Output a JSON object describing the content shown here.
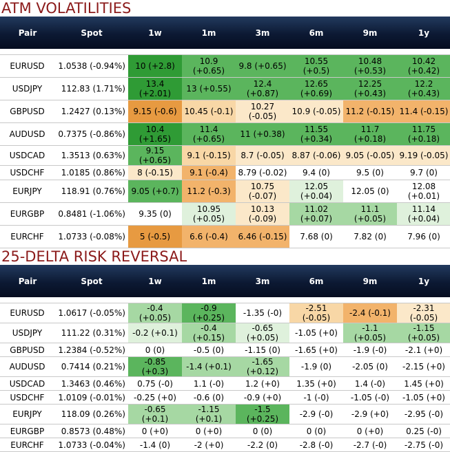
{
  "colors": {
    "title_red": "#8b1a1a",
    "header_navy": "#0c1933",
    "dark_green": "#2f9b35",
    "mid_green": "#5bb55d",
    "light_green": "#a6d8a3",
    "pale_green": "#dff1dc",
    "dark_orange": "#e79a41",
    "mid_orange": "#f2b36b",
    "light_orange": "#f8d7a6",
    "pale_orange": "#fbe8c9",
    "white": "#ffffff"
  },
  "chart_data": [
    {
      "type": "table",
      "title": "ATM VOLATILITIES",
      "columns": [
        "Pair",
        "Spot",
        "1w",
        "1m",
        "3m",
        "6m",
        "9m",
        "1y"
      ],
      "rows": [
        {
          "pair": "EURUSD",
          "spot": "1.0538 (-0.94%)",
          "cells": [
            {
              "text": "10 (+2.8)",
              "color": "#2f9b35"
            },
            {
              "text": "10.9 (+0.65)",
              "color": "#5bb55d"
            },
            {
              "text": "9.8 (+0.65)",
              "color": "#5bb55d"
            },
            {
              "text": "10.55 (+0.5)",
              "color": "#5bb55d"
            },
            {
              "text": "10.48 (+0.53)",
              "color": "#5bb55d"
            },
            {
              "text": "10.42 (+0.42)",
              "color": "#5bb55d"
            }
          ]
        },
        {
          "pair": "USDJPY",
          "spot": "112.83 (1.71%)",
          "cells": [
            {
              "text": "13.4 (+2.01)",
              "color": "#2f9b35"
            },
            {
              "text": "13 (+0.55)",
              "color": "#5bb55d"
            },
            {
              "text": "12.4 (+0.87)",
              "color": "#5bb55d"
            },
            {
              "text": "12.65 (+0.69)",
              "color": "#5bb55d"
            },
            {
              "text": "12.25 (+0.43)",
              "color": "#5bb55d"
            },
            {
              "text": "12.2 (+0.43)",
              "color": "#5bb55d"
            }
          ]
        },
        {
          "pair": "GBPUSD",
          "spot": "1.2427 (0.13%)",
          "cells": [
            {
              "text": "9.15 (-0.6)",
              "color": "#e79a41"
            },
            {
              "text": "10.45 (-0.1)",
              "color": "#f8d7a6"
            },
            {
              "text": "10.27 (-0.05)",
              "color": "#fbe8c9"
            },
            {
              "text": "10.9 (-0.05)",
              "color": "#fbe8c9"
            },
            {
              "text": "11.2 (-0.15)",
              "color": "#f2b36b"
            },
            {
              "text": "11.4 (-0.15)",
              "color": "#f2b36b"
            }
          ]
        },
        {
          "pair": "AUDUSD",
          "spot": "0.7375 (-0.86%)",
          "cells": [
            {
              "text": "10.4 (+1.65)",
              "color": "#2f9b35"
            },
            {
              "text": "11.4 (+0.65)",
              "color": "#5bb55d"
            },
            {
              "text": "11 (+0.38)",
              "color": "#5bb55d"
            },
            {
              "text": "11.55 (+0.34)",
              "color": "#5bb55d"
            },
            {
              "text": "11.7 (+0.18)",
              "color": "#5bb55d"
            },
            {
              "text": "11.75 (+0.18)",
              "color": "#5bb55d"
            }
          ]
        },
        {
          "pair": "USDCAD",
          "spot": "1.3513 (0.63%)",
          "cells": [
            {
              "text": "9.15 (+0.65)",
              "color": "#5bb55d"
            },
            {
              "text": "9.1 (-0.15)",
              "color": "#f8d7a6"
            },
            {
              "text": "8.7 (-0.05)",
              "color": "#fbe8c9"
            },
            {
              "text": "8.87 (-0.06)",
              "color": "#fbe8c9"
            },
            {
              "text": "9.05 (-0.05)",
              "color": "#fbe8c9"
            },
            {
              "text": "9.19 (-0.05)",
              "color": "#fbe8c9"
            }
          ]
        },
        {
          "pair": "USDCHF",
          "spot": "1.0185 (0.86%)",
          "cells": [
            {
              "text": "8 (-0.15)",
              "color": "#fbe8c9"
            },
            {
              "text": "9.1 (-0.4)",
              "color": "#f2b36b"
            },
            {
              "text": "8.79 (-0.02)",
              "color": "#ffffff"
            },
            {
              "text": "9.4 (0)",
              "color": "#ffffff"
            },
            {
              "text": "9.5 (0)",
              "color": "#ffffff"
            },
            {
              "text": "9.7 (0)",
              "color": "#ffffff"
            }
          ]
        },
        {
          "pair": "EURJPY",
          "spot": "118.91 (0.76%)",
          "cells": [
            {
              "text": "9.05 (+0.7)",
              "color": "#5bb55d"
            },
            {
              "text": "11.2 (-0.3)",
              "color": "#f2b36b"
            },
            {
              "text": "10.75 (-0.07)",
              "color": "#fbe8c9"
            },
            {
              "text": "12.05 (+0.04)",
              "color": "#dff1dc"
            },
            {
              "text": "12.05 (0)",
              "color": "#ffffff"
            },
            {
              "text": "12.08 (+0.01)",
              "color": "#ffffff"
            }
          ]
        },
        {
          "pair": "EURGBP",
          "spot": "0.8481 (-1.06%)",
          "cells": [
            {
              "text": "9.35 (0)",
              "color": "#ffffff"
            },
            {
              "text": "10.95 (+0.05)",
              "color": "#dff1dc"
            },
            {
              "text": "10.13 (-0.09)",
              "color": "#fbe8c9"
            },
            {
              "text": "11.02 (+0.07)",
              "color": "#a6d8a3"
            },
            {
              "text": "11.1 (+0.05)",
              "color": "#a6d8a3"
            },
            {
              "text": "11.14 (+0.04)",
              "color": "#dff1dc"
            }
          ]
        },
        {
          "pair": "EURCHF",
          "spot": "1.0733 (-0.08%)",
          "cells": [
            {
              "text": "5 (-0.5)",
              "color": "#e79a41"
            },
            {
              "text": "6.6 (-0.4)",
              "color": "#f2b36b"
            },
            {
              "text": "6.46 (-0.15)",
              "color": "#f2b36b"
            },
            {
              "text": "7.68 (0)",
              "color": "#ffffff"
            },
            {
              "text": "7.82 (0)",
              "color": "#ffffff"
            },
            {
              "text": "7.96 (0)",
              "color": "#ffffff"
            }
          ]
        }
      ]
    },
    {
      "type": "table",
      "title": "25-DELTA RISK REVERSAL",
      "columns": [
        "Pair",
        "Spot",
        "1w",
        "1m",
        "3m",
        "6m",
        "9m",
        "1y"
      ],
      "rows": [
        {
          "pair": "EURUSD",
          "spot": "1.0617 (-0.05%)",
          "cells": [
            {
              "text": "-0.4 (+0.05)",
              "color": "#a6d8a3"
            },
            {
              "text": "-0.9 (+0.25)",
              "color": "#5bb55d"
            },
            {
              "text": "-1.35 (-0)",
              "color": "#ffffff"
            },
            {
              "text": "-2.51 (-0.05)",
              "color": "#f8d7a6"
            },
            {
              "text": "-2.4 (-0.1)",
              "color": "#f2b36b"
            },
            {
              "text": "-2.31 (-0.05)",
              "color": "#fbe8c9"
            }
          ]
        },
        {
          "pair": "USDJPY",
          "spot": "111.22 (0.31%)",
          "cells": [
            {
              "text": "-0.2 (+0.1)",
              "color": "#dff1dc"
            },
            {
              "text": "-0.4 (+0.15)",
              "color": "#a6d8a3"
            },
            {
              "text": "-0.65 (+0.05)",
              "color": "#dff1dc"
            },
            {
              "text": "-1.05 (+0)",
              "color": "#ffffff"
            },
            {
              "text": "-1.1 (+0.05)",
              "color": "#a6d8a3"
            },
            {
              "text": "-1.15 (+0.05)",
              "color": "#a6d8a3"
            }
          ]
        },
        {
          "pair": "GBPUSD",
          "spot": "1.2384 (-0.52%)",
          "cells": [
            {
              "text": "0 (0)",
              "color": "#ffffff"
            },
            {
              "text": "-0.5 (0)",
              "color": "#ffffff"
            },
            {
              "text": "-1.15 (0)",
              "color": "#ffffff"
            },
            {
              "text": "-1.65 (+0)",
              "color": "#ffffff"
            },
            {
              "text": "-1.9 (-0)",
              "color": "#ffffff"
            },
            {
              "text": "-2.1 (+0)",
              "color": "#ffffff"
            }
          ]
        },
        {
          "pair": "AUDUSD",
          "spot": "0.7414 (0.21%)",
          "cells": [
            {
              "text": "-0.85 (+0.3)",
              "color": "#5bb55d"
            },
            {
              "text": "-1.4 (+0.1)",
              "color": "#a6d8a3"
            },
            {
              "text": "-1.65 (+0.12)",
              "color": "#a6d8a3"
            },
            {
              "text": "-1.9 (0)",
              "color": "#ffffff"
            },
            {
              "text": "-2.05 (0)",
              "color": "#ffffff"
            },
            {
              "text": "-2.15 (+0)",
              "color": "#ffffff"
            }
          ]
        },
        {
          "pair": "USDCAD",
          "spot": "1.3463 (0.46%)",
          "cells": [
            {
              "text": "0.75 (-0)",
              "color": "#ffffff"
            },
            {
              "text": "1.1 (-0)",
              "color": "#ffffff"
            },
            {
              "text": "1.2 (+0)",
              "color": "#ffffff"
            },
            {
              "text": "1.35 (+0)",
              "color": "#ffffff"
            },
            {
              "text": "1.4 (-0)",
              "color": "#ffffff"
            },
            {
              "text": "1.45 (+0)",
              "color": "#ffffff"
            }
          ]
        },
        {
          "pair": "USDCHF",
          "spot": "1.0109 (-0.01%)",
          "cells": [
            {
              "text": "-0.25 (+0)",
              "color": "#ffffff"
            },
            {
              "text": "-0.6 (0)",
              "color": "#ffffff"
            },
            {
              "text": "-0.9 (+0)",
              "color": "#ffffff"
            },
            {
              "text": "-1 (-0)",
              "color": "#ffffff"
            },
            {
              "text": "-1.05 (-0)",
              "color": "#ffffff"
            },
            {
              "text": "-1.05 (+0)",
              "color": "#ffffff"
            }
          ]
        },
        {
          "pair": "EURJPY",
          "spot": "118.09 (0.26%)",
          "cells": [
            {
              "text": "-0.65 (+0.1)",
              "color": "#a6d8a3"
            },
            {
              "text": "-1.15 (+0.1)",
              "color": "#a6d8a3"
            },
            {
              "text": "-1.5 (+0.25)",
              "color": "#5bb55d"
            },
            {
              "text": "-2.9 (-0)",
              "color": "#ffffff"
            },
            {
              "text": "-2.9 (+0)",
              "color": "#ffffff"
            },
            {
              "text": "-2.95 (-0)",
              "color": "#ffffff"
            }
          ]
        },
        {
          "pair": "EURGBP",
          "spot": "0.8573 (0.48%)",
          "cells": [
            {
              "text": "0 (+0)",
              "color": "#ffffff"
            },
            {
              "text": "0 (+0)",
              "color": "#ffffff"
            },
            {
              "text": "0 (0)",
              "color": "#ffffff"
            },
            {
              "text": "0 (0)",
              "color": "#ffffff"
            },
            {
              "text": "0 (+0)",
              "color": "#ffffff"
            },
            {
              "text": "0.25 (-0)",
              "color": "#ffffff"
            }
          ]
        },
        {
          "pair": "EURCHF",
          "spot": "1.0733 (-0.04%)",
          "cells": [
            {
              "text": "-1.4 (0)",
              "color": "#ffffff"
            },
            {
              "text": "-2 (+0)",
              "color": "#ffffff"
            },
            {
              "text": "-2.2 (0)",
              "color": "#ffffff"
            },
            {
              "text": "-2.8 (-0)",
              "color": "#ffffff"
            },
            {
              "text": "-2.7 (-0)",
              "color": "#ffffff"
            },
            {
              "text": "-2.75 (-0)",
              "color": "#ffffff"
            }
          ]
        }
      ]
    }
  ]
}
